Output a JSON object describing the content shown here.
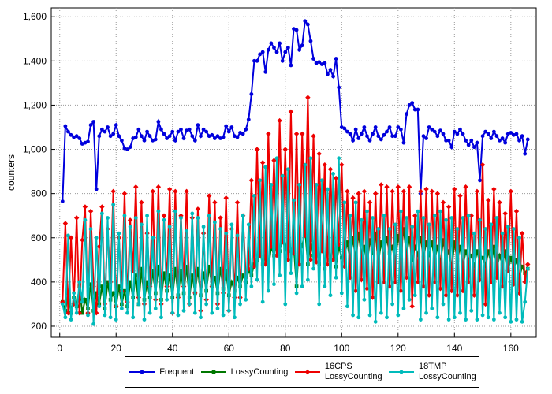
{
  "chart_data": {
    "type": "line",
    "ylabel": "counters",
    "x": [
      1,
      2,
      3,
      4,
      5,
      6,
      7,
      8,
      9,
      10,
      11,
      12,
      13,
      14,
      15,
      16,
      17,
      18,
      19,
      20,
      21,
      22,
      23,
      24,
      25,
      26,
      27,
      28,
      29,
      30,
      31,
      32,
      33,
      34,
      35,
      36,
      37,
      38,
      39,
      40,
      41,
      42,
      43,
      44,
      45,
      46,
      47,
      48,
      49,
      50,
      51,
      52,
      53,
      54,
      55,
      56,
      57,
      58,
      59,
      60,
      61,
      62,
      63,
      64,
      65,
      66,
      67,
      68,
      69,
      70,
      71,
      72,
      73,
      74,
      75,
      76,
      77,
      78,
      79,
      80,
      81,
      82,
      83,
      84,
      85,
      86,
      87,
      88,
      89,
      90,
      91,
      92,
      93,
      94,
      95,
      96,
      97,
      98,
      99,
      100,
      101,
      102,
      103,
      104,
      105,
      106,
      107,
      108,
      109,
      110,
      111,
      112,
      113,
      114,
      115,
      116,
      117,
      118,
      119,
      120,
      121,
      122,
      123,
      124,
      125,
      126,
      127,
      128,
      129,
      130,
      131,
      132,
      133,
      134,
      135,
      136,
      137,
      138,
      139,
      140,
      141,
      142,
      143,
      144,
      145,
      146,
      147,
      148,
      149,
      150,
      151,
      152,
      153,
      154,
      155,
      156,
      157,
      158,
      159,
      160,
      161,
      162,
      163,
      164,
      165,
      166
    ],
    "series": [
      {
        "name": "Frequent",
        "color": "#0000dd",
        "marker": "circle",
        "values": [
          765,
          1105,
          1080,
          1065,
          1055,
          1060,
          1050,
          1025,
          1030,
          1035,
          1110,
          1125,
          820,
          1060,
          1090,
          1080,
          1100,
          1060,
          1070,
          1110,
          1060,
          1040,
          1005,
          1000,
          1010,
          1050,
          1055,
          1090,
          1060,
          1040,
          1080,
          1060,
          1040,
          1045,
          1125,
          1090,
          1070,
          1050,
          1060,
          1080,
          1040,
          1080,
          1090,
          1050,
          1085,
          1090,
          1060,
          1040,
          1110,
          1060,
          1090,
          1080,
          1060,
          1065,
          1050,
          1060,
          1050,
          1055,
          1105,
          1080,
          1100,
          1060,
          1055,
          1075,
          1070,
          1090,
          1135,
          1250,
          1400,
          1400,
          1430,
          1440,
          1350,
          1450,
          1480,
          1460,
          1440,
          1480,
          1400,
          1440,
          1460,
          1380,
          1545,
          1540,
          1450,
          1470,
          1580,
          1565,
          1490,
          1410,
          1390,
          1395,
          1385,
          1390,
          1340,
          1360,
          1330,
          1410,
          1280,
          1100,
          1095,
          1080,
          1070,
          1040,
          1090,
          1050,
          1070,
          1100,
          1060,
          1040,
          1070,
          1100,
          1060,
          1045,
          1065,
          1080,
          1100,
          1060,
          1060,
          1100,
          1090,
          1030,
          1160,
          1200,
          1210,
          1180,
          1180,
          800,
          1060,
          1050,
          1100,
          1090,
          1080,
          1060,
          1085,
          1070,
          1040,
          1040,
          1010,
          1080,
          1070,
          1090,
          1070,
          1040,
          1020,
          1040,
          1010,
          1030,
          860,
          1060,
          1080,
          1070,
          1050,
          1080,
          1060,
          1040,
          1050,
          1030,
          1070,
          1075,
          1065,
          1070,
          1040,
          1060,
          980,
          1045
        ]
      },
      {
        "name": "LossyCounting",
        "color": "#007700",
        "marker": "square",
        "values": [
          310,
          270,
          350,
          260,
          330,
          290,
          380,
          260,
          320,
          280,
          390,
          270,
          350,
          300,
          380,
          280,
          400,
          320,
          350,
          290,
          380,
          300,
          360,
          290,
          400,
          330,
          430,
          300,
          460,
          320,
          400,
          330,
          450,
          350,
          470,
          320,
          440,
          360,
          430,
          330,
          460,
          340,
          450,
          350,
          470,
          330,
          430,
          350,
          460,
          340,
          440,
          360,
          470,
          380,
          420,
          350,
          460,
          370,
          450,
          340,
          400,
          360,
          420,
          380,
          430,
          400,
          450,
          430,
          480,
          500,
          540,
          480,
          520,
          460,
          560,
          520,
          580,
          540,
          590,
          550,
          610,
          540,
          560,
          380,
          600,
          560,
          640,
          480,
          590,
          520,
          560,
          480,
          600,
          460,
          590,
          500,
          580,
          470,
          560,
          510,
          520,
          580,
          490,
          600,
          500,
          620,
          520,
          560,
          480,
          590,
          530,
          620,
          490,
          580,
          510,
          600,
          530,
          560,
          480,
          610,
          540,
          640,
          520,
          600,
          500,
          560,
          520,
          600,
          510,
          580,
          520,
          580,
          500,
          560,
          480,
          590,
          510,
          540,
          460,
          580,
          500,
          560,
          470,
          540,
          500,
          520,
          470,
          540,
          490,
          510,
          470,
          540,
          480,
          560,
          460,
          520,
          480,
          540,
          450,
          510,
          460,
          500,
          420,
          470,
          440,
          460
        ]
      },
      {
        "name": "16CPS\nLossyCounting",
        "color": "#ee0000",
        "marker": "diamond",
        "values": [
          310,
          665,
          260,
          600,
          300,
          690,
          260,
          590,
          740,
          260,
          720,
          380,
          260,
          560,
          740,
          300,
          640,
          400,
          810,
          290,
          600,
          360,
          800,
          310,
          680,
          450,
          830,
          330,
          760,
          300,
          620,
          380,
          810,
          320,
          830,
          300,
          700,
          380,
          820,
          260,
          810,
          330,
          700,
          380,
          810,
          300,
          690,
          350,
          730,
          270,
          620,
          320,
          790,
          380,
          760,
          300,
          690,
          350,
          780,
          270,
          640,
          330,
          760,
          330,
          700,
          420,
          460,
          860,
          470,
          1000,
          520,
          940,
          480,
          1070,
          560,
          950,
          520,
          1130,
          580,
          1000,
          500,
          1170,
          530,
          1070,
          480,
          1070,
          610,
          1235,
          500,
          1060,
          490,
          980,
          540,
          930,
          480,
          910,
          500,
          870,
          570,
          930,
          470,
          810,
          420,
          780,
          360,
          800,
          410,
          810,
          370,
          760,
          330,
          800,
          400,
          840,
          400,
          830,
          380,
          810,
          400,
          830,
          360,
          810,
          420,
          830,
          290,
          700,
          400,
          810,
          380,
          820,
          340,
          810,
          400,
          800,
          370,
          760,
          340,
          740,
          360,
          820,
          340,
          790,
          360,
          830,
          400,
          700,
          340,
          810,
          410,
          930,
          300,
          770,
          400,
          820,
          420,
          760,
          380,
          710,
          450,
          810,
          390,
          720,
          350,
          620,
          400,
          480
        ]
      },
      {
        "name": "18TMP\nLossyCounting",
        "color": "#00bbbb",
        "marker": "circle",
        "values": [
          300,
          240,
          610,
          230,
          350,
          260,
          400,
          310,
          680,
          250,
          640,
          210,
          600,
          290,
          710,
          250,
          690,
          240,
          750,
          230,
          620,
          280,
          700,
          260,
          650,
          240,
          690,
          300,
          660,
          230,
          700,
          260,
          600,
          280,
          720,
          240,
          680,
          320,
          650,
          260,
          720,
          250,
          690,
          270,
          630,
          300,
          710,
          260,
          690,
          240,
          650,
          300,
          700,
          260,
          670,
          280,
          640,
          250,
          620,
          270,
          660,
          240,
          610,
          300,
          700,
          320,
          660,
          380,
          790,
          410,
          860,
          310,
          920,
          360,
          840,
          390,
          960,
          430,
          880,
          300,
          910,
          440,
          770,
          350,
          840,
          380,
          930,
          410,
          960,
          460,
          840,
          300,
          860,
          380,
          820,
          340,
          890,
          420,
          960,
          350,
          760,
          290,
          700,
          250,
          760,
          240,
          680,
          320,
          720,
          250,
          690,
          220,
          640,
          260,
          700,
          240,
          640,
          300,
          660,
          250,
          720,
          280,
          690,
          320,
          650,
          340,
          720,
          230,
          690,
          260,
          660,
          280,
          700,
          240,
          720,
          300,
          680,
          230,
          690,
          240,
          640,
          260,
          690,
          230,
          700,
          270,
          620,
          230,
          680,
          250,
          640,
          240,
          660,
          230,
          690,
          260,
          620,
          240,
          650,
          220,
          640,
          230,
          600,
          220,
          310,
          460
        ]
      }
    ],
    "xlim": [
      -3,
      169
    ],
    "xticks": [
      0,
      20,
      40,
      60,
      80,
      100,
      120,
      140,
      160
    ],
    "ylim": [
      150,
      1640
    ],
    "yticks": [
      200,
      400,
      600,
      800,
      {
        "value": 1000,
        "label": "1,000"
      },
      {
        "value": 1200,
        "label": "1,200"
      },
      {
        "value": 1400,
        "label": "1,400"
      },
      {
        "value": 1600,
        "label": "1,600"
      }
    ],
    "grid": true
  }
}
